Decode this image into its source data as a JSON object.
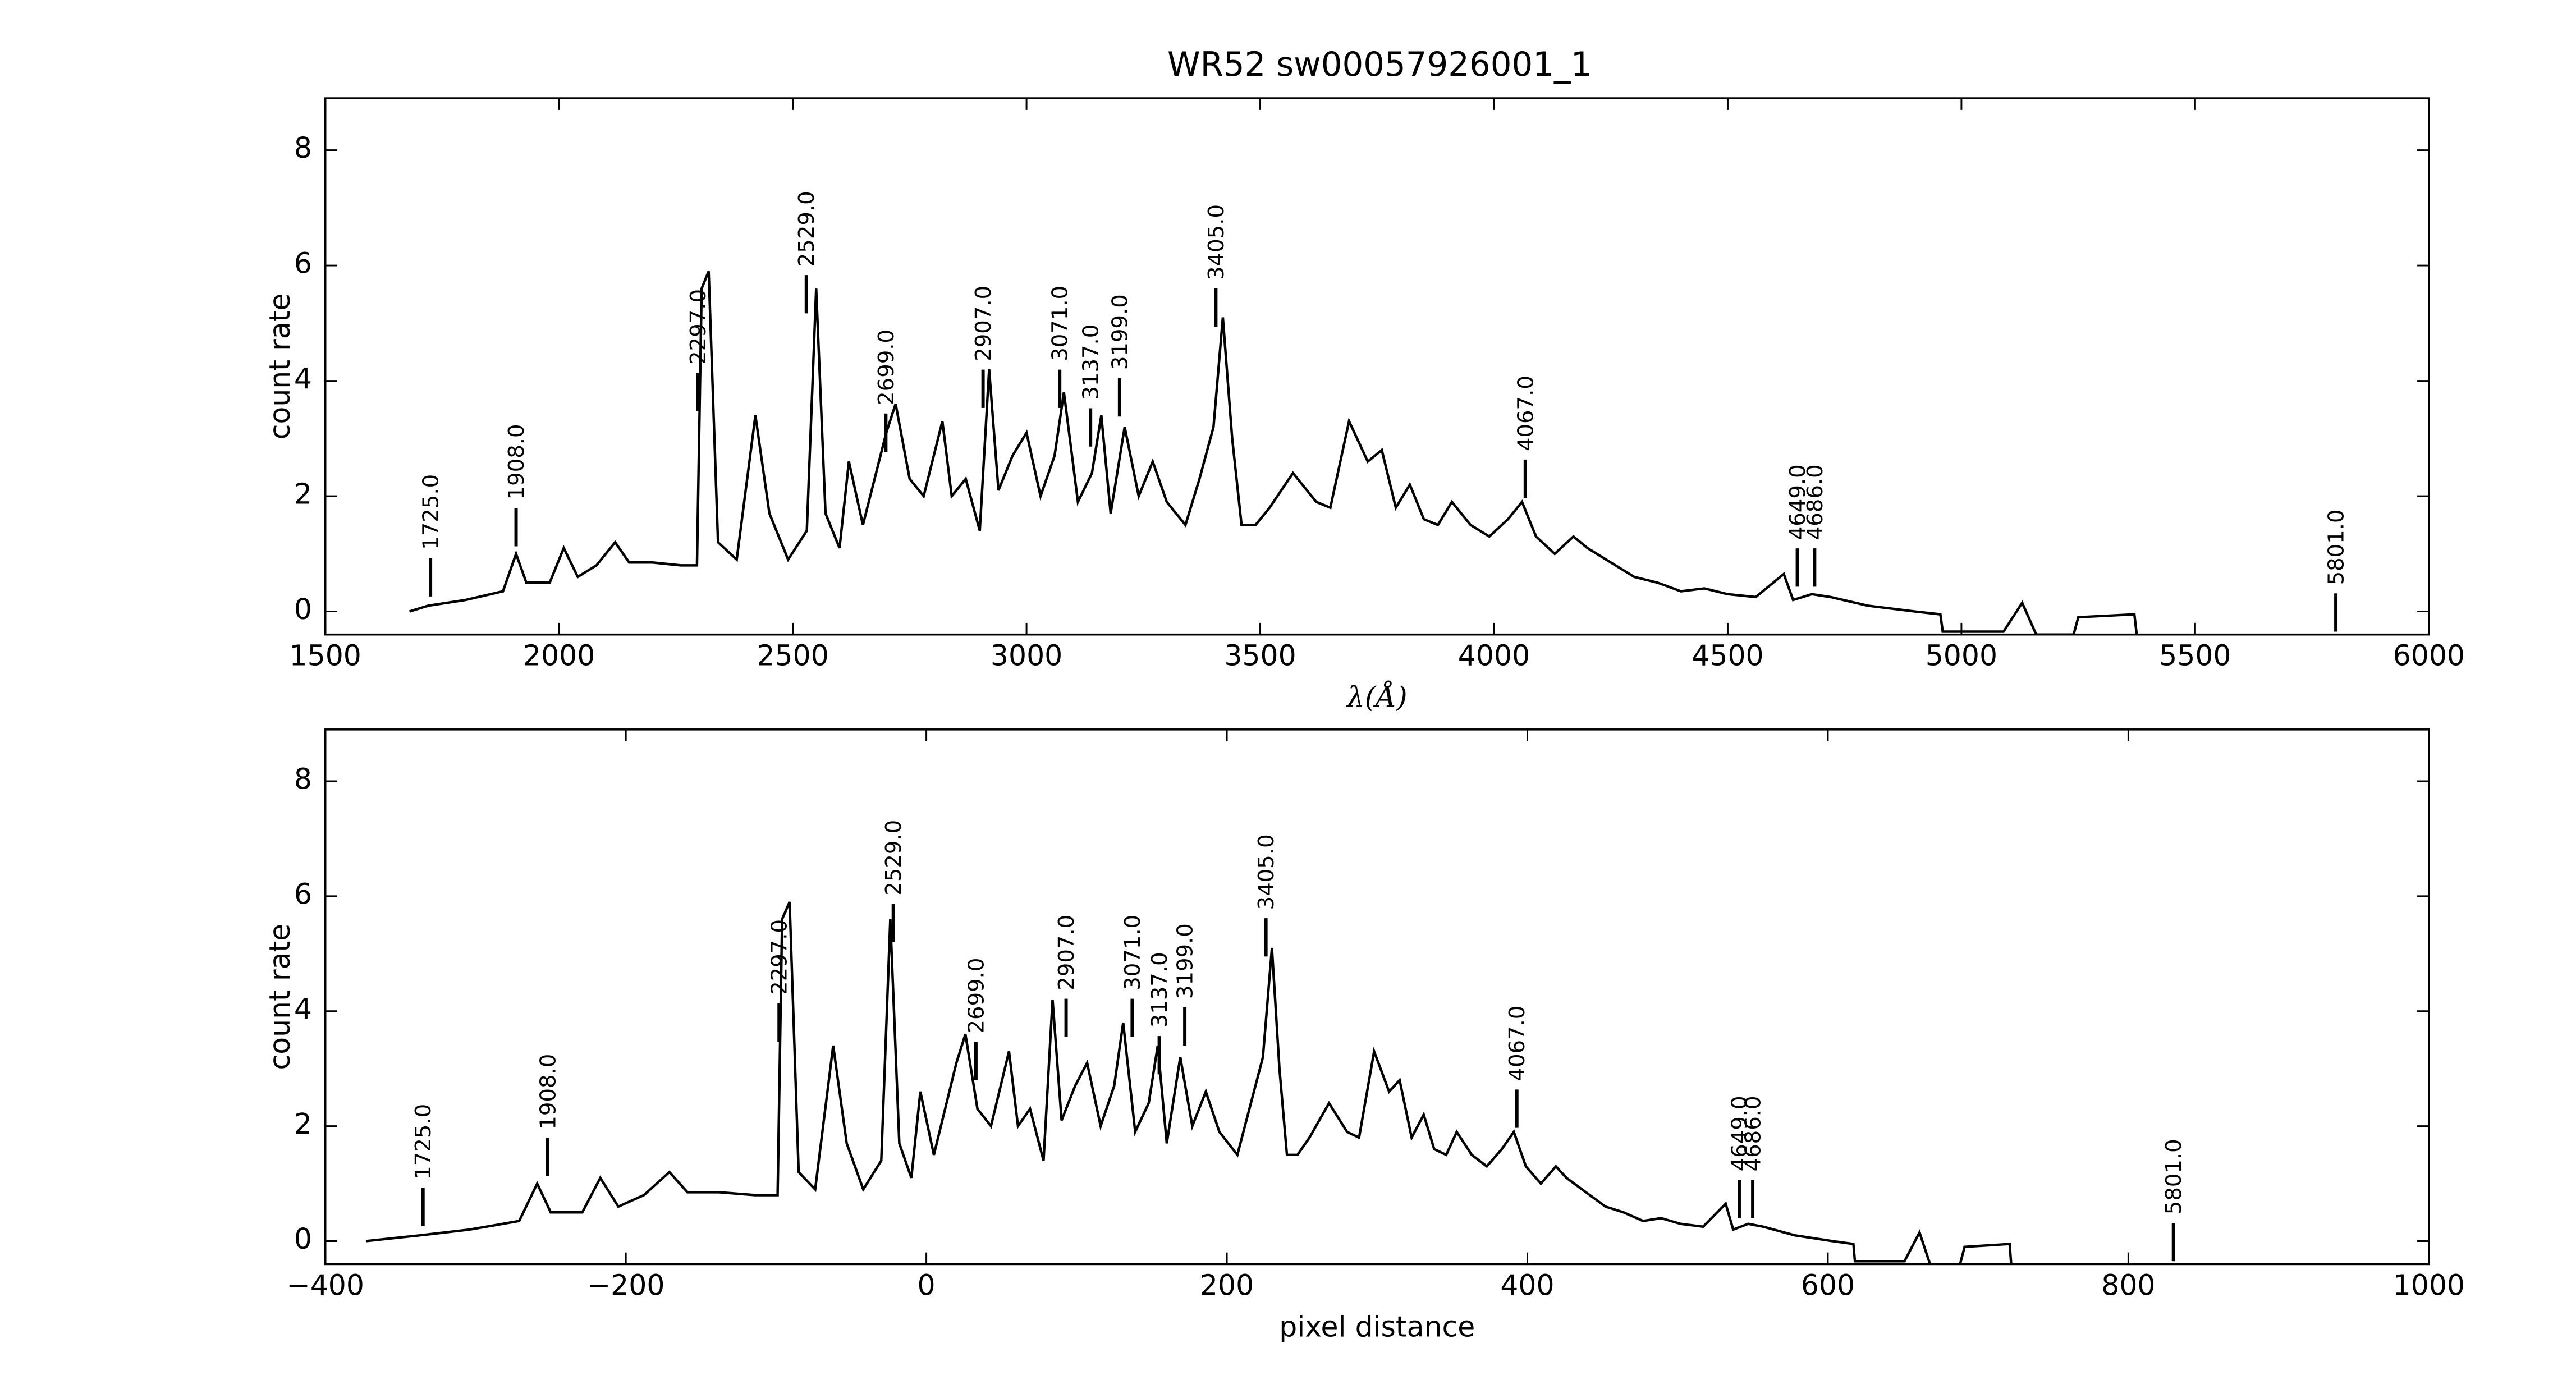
{
  "chart_data": [
    {
      "type": "line",
      "title": "WR52  sw00057926001_1",
      "xlabel": "λ(Å)",
      "ylabel": "count rate",
      "xlim": [
        1500,
        6000
      ],
      "ylim": [
        -0.4,
        8.9
      ],
      "xticks": [
        1500,
        2000,
        2500,
        3000,
        3500,
        4000,
        4500,
        5000,
        5500,
        6000
      ],
      "yticks": [
        0,
        2,
        4,
        6,
        8
      ],
      "series": [
        {
          "color": "#000000",
          "x": [
            1680,
            1720,
            1800,
            1880,
            1908,
            1930,
            1980,
            2010,
            2040,
            2080,
            2120,
            2150,
            2200,
            2260,
            2295,
            2305,
            2320,
            2340,
            2380,
            2420,
            2450,
            2490,
            2530,
            2550,
            2570,
            2600,
            2620,
            2650,
            2700,
            2720,
            2750,
            2780,
            2820,
            2840,
            2870,
            2900,
            2920,
            2940,
            2970,
            3000,
            3030,
            3060,
            3080,
            3110,
            3140,
            3160,
            3180,
            3210,
            3240,
            3270,
            3300,
            3340,
            3370,
            3400,
            3420,
            3440,
            3460,
            3490,
            3520,
            3570,
            3620,
            3650,
            3690,
            3730,
            3760,
            3790,
            3820,
            3850,
            3880,
            3910,
            3950,
            3990,
            4030,
            4060,
            4090,
            4130,
            4170,
            4200,
            4250,
            4300,
            4350,
            4400,
            4450,
            4500,
            4560,
            4620,
            4640,
            4680,
            4720,
            4800,
            4900,
            4955,
            4960,
            5090,
            5130,
            5160,
            5240,
            5250,
            5370,
            5375
          ],
          "values": [
            0.0,
            0.1,
            0.2,
            0.35,
            1.0,
            0.5,
            0.5,
            1.1,
            0.6,
            0.8,
            1.2,
            0.85,
            0.85,
            0.8,
            0.8,
            5.6,
            5.9,
            1.2,
            0.9,
            3.4,
            1.7,
            0.9,
            1.4,
            5.6,
            1.7,
            1.1,
            2.6,
            1.5,
            3.1,
            3.6,
            2.3,
            2.0,
            3.3,
            2.0,
            2.3,
            1.4,
            4.2,
            2.1,
            2.7,
            3.1,
            2.0,
            2.7,
            3.8,
            1.9,
            2.4,
            3.4,
            1.7,
            3.2,
            2.0,
            2.6,
            1.9,
            1.5,
            2.3,
            3.2,
            5.1,
            3.0,
            1.5,
            1.5,
            1.8,
            2.4,
            1.9,
            1.8,
            3.3,
            2.6,
            2.8,
            1.8,
            2.2,
            1.6,
            1.5,
            1.9,
            1.5,
            1.3,
            1.6,
            1.9,
            1.3,
            1.0,
            1.3,
            1.1,
            0.85,
            0.6,
            0.5,
            0.35,
            0.4,
            0.3,
            0.25,
            0.65,
            0.2,
            0.3,
            0.25,
            0.1,
            0.0,
            -0.05,
            -0.35,
            -0.35,
            0.15,
            -0.4,
            -0.4,
            -0.1,
            -0.05,
            -0.4
          ]
        }
      ],
      "annotations": [
        {
          "label": "1725.0",
          "x": 1725,
          "y": 0.26
        },
        {
          "label": "1908.0",
          "x": 1908,
          "y": 1.13
        },
        {
          "label": "2297.0",
          "x": 2297,
          "y": 3.47
        },
        {
          "label": "2529.0",
          "x": 2529,
          "y": 5.17
        },
        {
          "label": "2699.0",
          "x": 2699,
          "y": 2.77
        },
        {
          "label": "2907.0",
          "x": 2907,
          "y": 3.53
        },
        {
          "label": "3071.0",
          "x": 3071,
          "y": 3.53
        },
        {
          "label": "3137.0",
          "x": 3137,
          "y": 2.86
        },
        {
          "label": "3199.0",
          "x": 3199,
          "y": 3.38
        },
        {
          "label": "3405.0",
          "x": 3405,
          "y": 4.94
        },
        {
          "label": "4067.0",
          "x": 4067,
          "y": 1.97
        },
        {
          "label": "4649.0",
          "x": 4649,
          "y": 0.43
        },
        {
          "label": "4686.0",
          "x": 4686,
          "y": 0.43
        },
        {
          "label": "5801.0",
          "x": 5801,
          "y": -0.35
        }
      ]
    },
    {
      "type": "line",
      "xlabel": "pixel distance",
      "ylabel": "count rate",
      "xlim": [
        -400,
        1000
      ],
      "ylim": [
        -0.4,
        8.9
      ],
      "xticks": [
        {
          "value": -400,
          "label": "−400"
        },
        {
          "value": -200,
          "label": "−200"
        },
        0,
        200,
        400,
        600,
        800,
        1000
      ],
      "yticks": [
        0,
        2,
        4,
        6,
        8
      ],
      "series": [
        {
          "color": "#000000",
          "x": [
            -373,
            -337,
            -304,
            -271,
            -259,
            -250,
            -229,
            -217,
            -205,
            -188,
            -171,
            -159,
            -138,
            -114,
            -99,
            -96,
            -91,
            -85,
            -74,
            -62,
            -53,
            -42,
            -30,
            -24,
            -18,
            -10,
            -4,
            5,
            20,
            26,
            34,
            43,
            55,
            61,
            69,
            78,
            84,
            90,
            99,
            107,
            116,
            125,
            131,
            139,
            148,
            154,
            160,
            169,
            177,
            186,
            195,
            207,
            215,
            224,
            230,
            235,
            240,
            247,
            255,
            268,
            280,
            288,
            298,
            308,
            315,
            323,
            331,
            338,
            346,
            353,
            363,
            373,
            383,
            391,
            399,
            409,
            419,
            426,
            439,
            452,
            464,
            477,
            489,
            502,
            517,
            532,
            537,
            547,
            557,
            578,
            603,
            617,
            618,
            651,
            661,
            668,
            688,
            691,
            721,
            722
          ],
          "values": [
            0.0,
            0.1,
            0.2,
            0.35,
            1.0,
            0.5,
            0.5,
            1.1,
            0.6,
            0.8,
            1.2,
            0.85,
            0.85,
            0.8,
            0.8,
            5.6,
            5.9,
            1.2,
            0.9,
            3.4,
            1.7,
            0.9,
            1.4,
            5.6,
            1.7,
            1.1,
            2.6,
            1.5,
            3.1,
            3.6,
            2.3,
            2.0,
            3.3,
            2.0,
            2.3,
            1.4,
            4.2,
            2.1,
            2.7,
            3.1,
            2.0,
            2.7,
            3.8,
            1.9,
            2.4,
            3.4,
            1.7,
            3.2,
            2.0,
            2.6,
            1.9,
            1.5,
            2.3,
            3.2,
            5.1,
            3.0,
            1.5,
            1.5,
            1.8,
            2.4,
            1.9,
            1.8,
            3.3,
            2.6,
            2.8,
            1.8,
            2.2,
            1.6,
            1.5,
            1.9,
            1.5,
            1.3,
            1.6,
            1.9,
            1.3,
            1.0,
            1.3,
            1.1,
            0.85,
            0.6,
            0.5,
            0.35,
            0.4,
            0.3,
            0.25,
            0.65,
            0.2,
            0.3,
            0.25,
            0.1,
            0.0,
            -0.05,
            -0.35,
            -0.35,
            0.15,
            -0.4,
            -0.4,
            -0.1,
            -0.05,
            -0.4
          ]
        }
      ],
      "annotations": [
        {
          "label": "1725.0",
          "x": -335,
          "y": 0.26
        },
        {
          "label": "1908.0",
          "x": -252,
          "y": 1.13
        },
        {
          "label": "2297.0",
          "x": -98,
          "y": 3.47
        },
        {
          "label": "2529.0",
          "x": -22,
          "y": 5.2
        },
        {
          "label": "2699.0",
          "x": 33,
          "y": 2.8
        },
        {
          "label": "2907.0",
          "x": 93,
          "y": 3.55
        },
        {
          "label": "3071.0",
          "x": 137,
          "y": 3.55
        },
        {
          "label": "3137.0",
          "x": 155,
          "y": 2.9
        },
        {
          "label": "3199.0",
          "x": 172,
          "y": 3.4
        },
        {
          "label": "3405.0",
          "x": 226,
          "y": 4.95
        },
        {
          "label": "4067.0",
          "x": 393,
          "y": 1.97
        },
        {
          "label": "4649.0",
          "x": 541,
          "y": 0.4
        },
        {
          "label": "4686.0",
          "x": 550,
          "y": 0.4
        },
        {
          "label": "5801.0",
          "x": 830,
          "y": -0.35
        }
      ]
    }
  ]
}
